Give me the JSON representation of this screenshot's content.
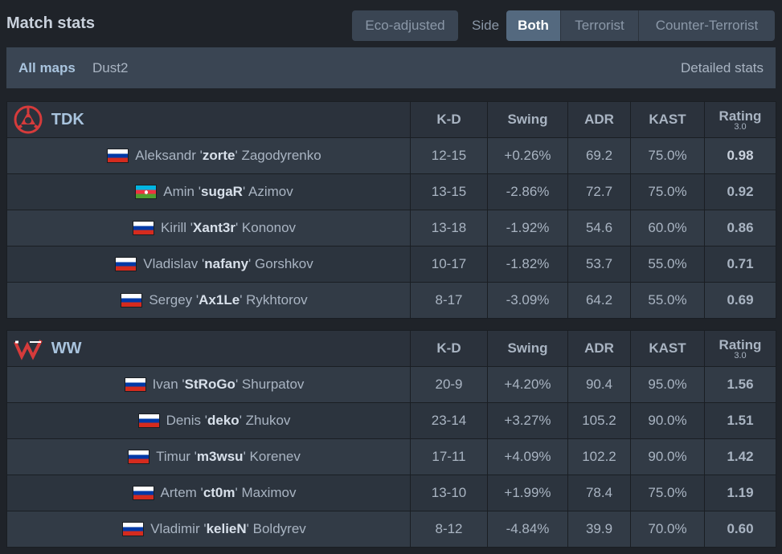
{
  "header": {
    "title": "Match stats",
    "eco_label": "Eco-adjusted",
    "side_label": "Side",
    "side_options": [
      "Both",
      "Terrorist",
      "Counter-Terrorist"
    ],
    "side_selected": "Both"
  },
  "maps": {
    "all_label": "All maps",
    "map_name": "Dust2",
    "detailed_label": "Detailed stats"
  },
  "columns": {
    "kd": "K-D",
    "swing": "Swing",
    "adr": "ADR",
    "kast": "KAST",
    "rating": "Rating",
    "rating_version": "3.0"
  },
  "teams": [
    {
      "name": "TDK",
      "logo_icon": "tdk-logo-icon",
      "players": [
        {
          "flag": "ru",
          "first": "Aleksandr '",
          "nick": "zorte",
          "last": "' Zagodyrenko",
          "kd": "12-15",
          "swing": "+0.26%",
          "adr": "69.2",
          "kast": "75.0%",
          "rating": "0.98",
          "swing_tone": "neu",
          "rating_tone": "neu"
        },
        {
          "flag": "az",
          "first": "Amin '",
          "nick": "sugaR",
          "last": "' Azimov",
          "kd": "13-15",
          "swing": "-2.86%",
          "adr": "72.7",
          "kast": "75.0%",
          "rating": "0.92",
          "swing_tone": "neg",
          "rating_tone": "neg"
        },
        {
          "flag": "ru",
          "first": "Kirill '",
          "nick": "Xant3r",
          "last": "' Kononov",
          "kd": "13-18",
          "swing": "-1.92%",
          "adr": "54.6",
          "kast": "60.0%",
          "rating": "0.86",
          "swing_tone": "neg",
          "rating_tone": "neg"
        },
        {
          "flag": "ru",
          "first": "Vladislav '",
          "nick": "nafany",
          "last": "' Gorshkov",
          "kd": "10-17",
          "swing": "-1.82%",
          "adr": "53.7",
          "kast": "55.0%",
          "rating": "0.71",
          "swing_tone": "neg",
          "rating_tone": "neg"
        },
        {
          "flag": "ru",
          "first": "Sergey '",
          "nick": "Ax1Le",
          "last": "' Rykhtorov",
          "kd": "8-17",
          "swing": "-3.09%",
          "adr": "64.2",
          "kast": "55.0%",
          "rating": "0.69",
          "swing_tone": "neg",
          "rating_tone": "neg"
        }
      ]
    },
    {
      "name": "WW",
      "logo_icon": "ww-logo-icon",
      "players": [
        {
          "flag": "ru",
          "first": "Ivan '",
          "nick": "StRoGo",
          "last": "' Shurpatov",
          "kd": "20-9",
          "swing": "+4.20%",
          "adr": "90.4",
          "kast": "95.0%",
          "rating": "1.56",
          "swing_tone": "pos",
          "rating_tone": "pos"
        },
        {
          "flag": "ru",
          "first": "Denis '",
          "nick": "deko",
          "last": "' Zhukov",
          "kd": "23-14",
          "swing": "+3.27%",
          "adr": "105.2",
          "kast": "90.0%",
          "rating": "1.51",
          "swing_tone": "pos",
          "rating_tone": "pos"
        },
        {
          "flag": "ru",
          "first": "Timur '",
          "nick": "m3wsu",
          "last": "' Korenev",
          "kd": "17-11",
          "swing": "+4.09%",
          "adr": "102.2",
          "kast": "90.0%",
          "rating": "1.42",
          "swing_tone": "pos",
          "rating_tone": "pos"
        },
        {
          "flag": "ru",
          "first": "Artem '",
          "nick": "ct0m",
          "last": "' Maximov",
          "kd": "13-10",
          "swing": "+1.99%",
          "adr": "78.4",
          "kast": "75.0%",
          "rating": "1.19",
          "swing_tone": "pos",
          "rating_tone": "pos"
        },
        {
          "flag": "ru",
          "first": "Vladimir '",
          "nick": "kelieN",
          "last": "' Boldyrev",
          "kd": "8-12",
          "swing": "-4.84%",
          "adr": "39.9",
          "kast": "70.0%",
          "rating": "0.60",
          "swing_tone": "neg",
          "rating_tone": "neg"
        }
      ]
    }
  ],
  "colors": {
    "background": "#1f2329",
    "negative": "#e84a4a",
    "positive": "#2fbd42",
    "accent": "#a9c4de",
    "tdk_red": "#d63b3b"
  }
}
